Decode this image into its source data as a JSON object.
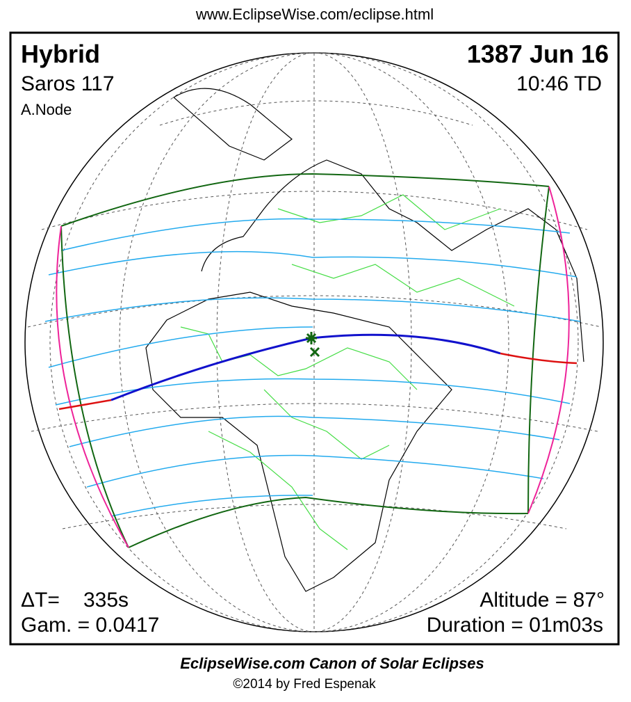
{
  "header": {
    "url": "www.EclipseWise.com/eclipse.html"
  },
  "info_left": {
    "type": "Hybrid",
    "saros": "Saros 117",
    "node": "A.Node"
  },
  "info_right": {
    "date": "1387 Jun 16",
    "time": "10:46 TD"
  },
  "stats_left": {
    "delta_t_label": "ΔT=",
    "delta_t_value": "335s",
    "gamma": "Gam. = 0.0417"
  },
  "stats_right": {
    "altitude": "Altitude = 87°",
    "duration": "Duration = 01m03s"
  },
  "footer": {
    "title": "EclipseWise.com Canon of Solar Eclipses",
    "copyright": "©2014 by Fred Espenak"
  }
}
